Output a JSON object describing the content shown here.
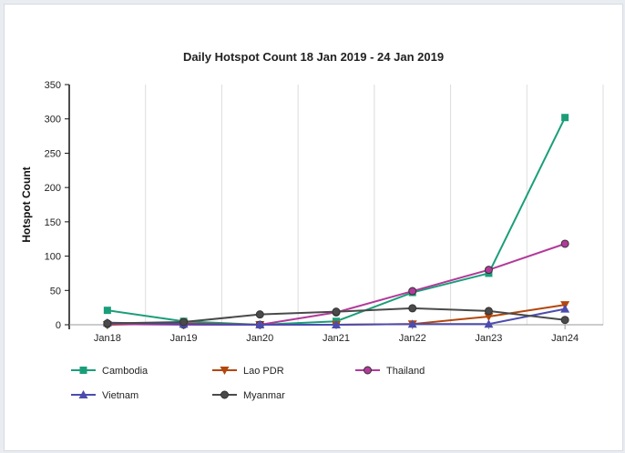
{
  "chart_data": {
    "type": "line",
    "title": "Daily Hotspot Count 18 Jan 2019 - 24 Jan 2019",
    "xlabel": "",
    "ylabel": "Hotspot Count",
    "categories": [
      "Jan18",
      "Jan19",
      "Jan20",
      "Jan21",
      "Jan22",
      "Jan23",
      "Jan24"
    ],
    "ylim": [
      0,
      350
    ],
    "yticks": [
      0,
      50,
      100,
      150,
      200,
      250,
      300,
      350
    ],
    "grid": "vertical",
    "legend_position": "bottom",
    "series": [
      {
        "name": "Cambodia",
        "color": "#1a9e7a",
        "marker": "square",
        "values": [
          21,
          5,
          0,
          5,
          47,
          75,
          302
        ]
      },
      {
        "name": "Lao PDR",
        "color": "#b3470c",
        "marker": "triangle-down",
        "values": [
          0,
          2,
          0,
          0,
          1,
          12,
          29
        ]
      },
      {
        "name": "Thailand",
        "color": "#b23a9a",
        "marker": "circle",
        "values": [
          1,
          0,
          0,
          18,
          49,
          80,
          118
        ]
      },
      {
        "name": "Vietnam",
        "color": "#4c4cae",
        "marker": "triangle-up",
        "values": [
          3,
          1,
          0,
          0,
          1,
          1,
          23
        ]
      },
      {
        "name": "Myanmar",
        "color": "#4a4a4a",
        "marker": "circle",
        "values": [
          2,
          4,
          15,
          19,
          24,
          20,
          7
        ]
      }
    ]
  }
}
